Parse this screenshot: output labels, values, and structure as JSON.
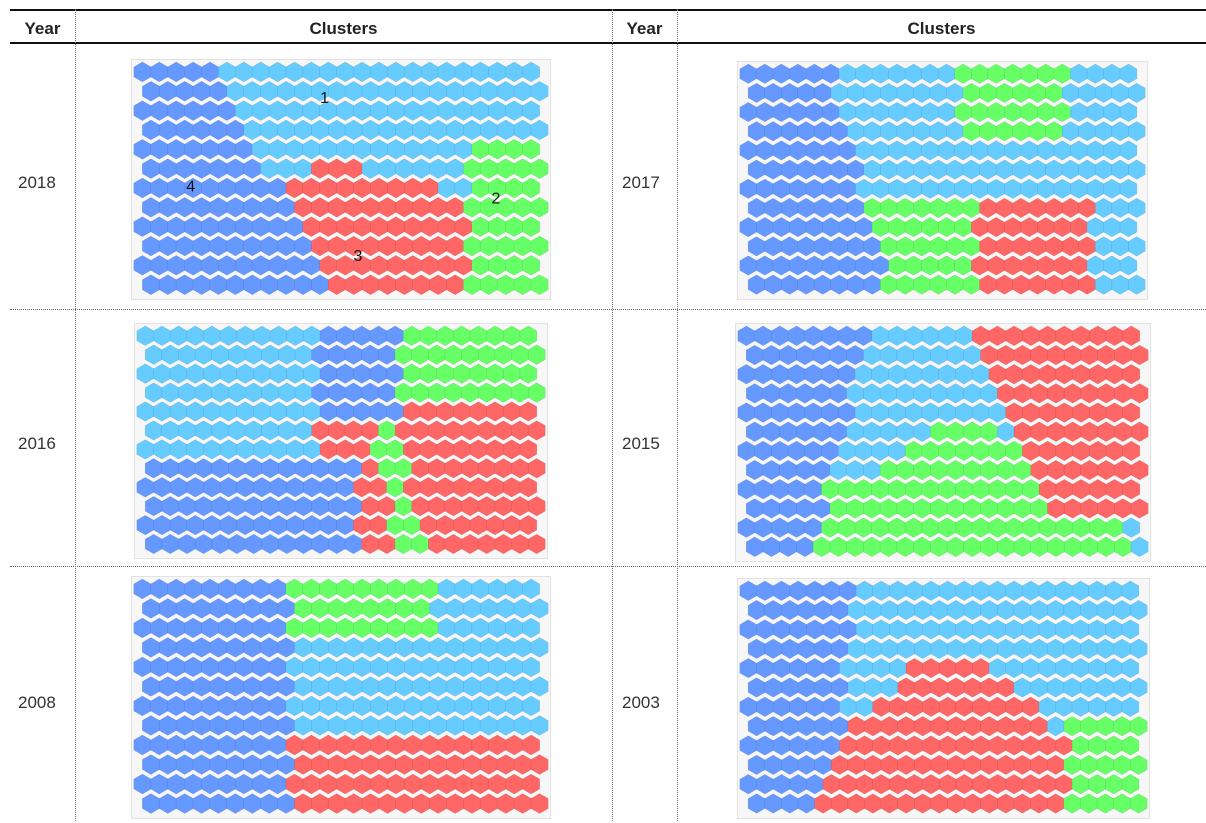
{
  "table": {
    "headers": [
      "Year",
      "Clusters",
      "Year",
      "Clusters"
    ],
    "rows": [
      {
        "left": {
          "year": "2018",
          "labels": [
            "1",
            "2",
            "3",
            "4"
          ]
        },
        "right": {
          "year": "2017",
          "labels": []
        }
      },
      {
        "left": {
          "year": "2016",
          "labels": []
        },
        "right": {
          "year": "2015",
          "labels": []
        }
      },
      {
        "left": {
          "year": "2008",
          "labels": []
        },
        "right": {
          "year": "2003",
          "labels": []
        }
      }
    ]
  },
  "cluster_colors": {
    "A": "#6699ff",
    "B": "#66ccff",
    "C": "#66ff66",
    "D": "#ff6666"
  }
}
